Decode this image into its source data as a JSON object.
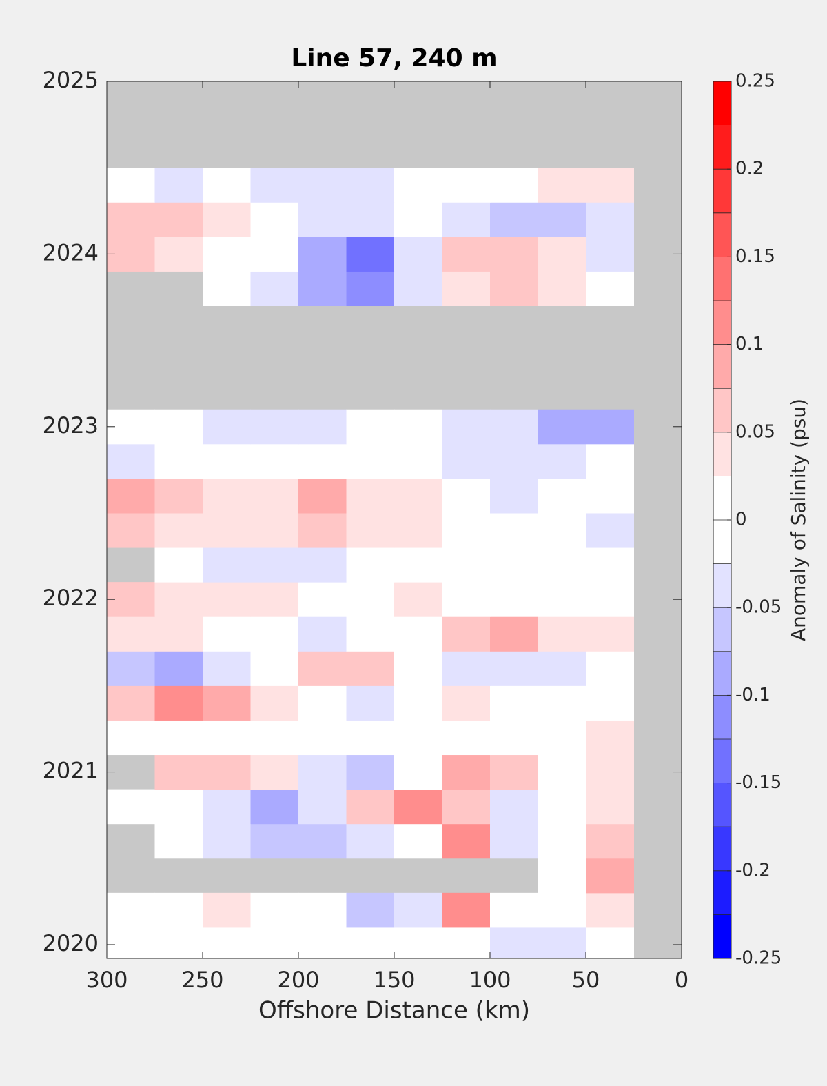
{
  "chart_data": {
    "type": "contour",
    "title": "Line 57, 240 m",
    "x_label": "Offshore Distance (km)",
    "colorbar_label": "Anomaly of Salinity (psu)",
    "xlim": [
      300,
      0
    ],
    "xticks": [
      300,
      250,
      200,
      150,
      100,
      50,
      0
    ],
    "ylim": [
      2019.92,
      2025
    ],
    "yticks": [
      2020,
      2021,
      2022,
      2023,
      2024,
      2025
    ],
    "clim": [
      -0.25,
      0.25
    ],
    "cticks": [
      -0.25,
      -0.2,
      -0.15,
      -0.1,
      -0.05,
      0,
      0.05,
      0.1,
      0.15,
      0.2,
      0.25
    ],
    "colors": [
      "#0000ff",
      "#1c1cff",
      "#3838ff",
      "#5555ff",
      "#7171ff",
      "#8d8dff",
      "#aaaaff",
      "#c6c6ff",
      "#e2e2ff",
      "#ffffff",
      "#ffffff",
      "#ffe2e2",
      "#ffc6c6",
      "#ffaaaa",
      "#ff8d8d",
      "#ff7171",
      "#ff5555",
      "#ff3838",
      "#ff1c1c",
      "#ff0000"
    ],
    "missing_color": "#c8c8c8",
    "x": [
      287.5,
      262.5,
      237.5,
      212.5,
      187.5,
      162.5,
      137.5,
      112.5,
      87.5,
      62.5,
      37.5,
      12.5
    ],
    "y": [
      2020.0,
      2020.2,
      2020.4,
      2020.6,
      2020.8,
      2021.0,
      2021.2,
      2021.4,
      2021.6,
      2021.8,
      2022.0,
      2022.2,
      2022.4,
      2022.6,
      2022.8,
      2023.0,
      2023.2,
      2023.4,
      2023.6,
      2023.8,
      2024.0,
      2024.2,
      2024.4,
      2024.6,
      2024.8
    ],
    "z": [
      [
        0,
        0,
        0,
        0,
        0,
        0,
        0,
        0,
        -0.03,
        -0.03,
        0,
        null
      ],
      [
        0,
        0,
        0.03,
        0,
        0,
        -0.06,
        -0.03,
        0.1,
        0,
        0,
        0.03,
        null
      ],
      [
        null,
        null,
        null,
        null,
        null,
        null,
        null,
        null,
        null,
        0,
        0.08,
        null
      ],
      [
        null,
        0,
        -0.05,
        -0.06,
        -0.06,
        -0.05,
        0,
        0.12,
        -0.03,
        0,
        0.07,
        null
      ],
      [
        0,
        0,
        -0.03,
        -0.08,
        -0.04,
        0.06,
        0.12,
        0.05,
        -0.05,
        0,
        0.04,
        null
      ],
      [
        null,
        0.05,
        0.07,
        0.03,
        -0.03,
        -0.06,
        0,
        0.08,
        0.05,
        0,
        0.03,
        null
      ],
      [
        0,
        0,
        0,
        0,
        0,
        0,
        0,
        0,
        0,
        0,
        0.03,
        null
      ],
      [
        0.07,
        0.1,
        0.09,
        0.04,
        0,
        -0.04,
        0,
        0.03,
        0,
        0,
        0,
        null
      ],
      [
        -0.06,
        -0.09,
        -0.05,
        0,
        0.05,
        0.05,
        0,
        -0.03,
        -0.03,
        -0.03,
        0,
        null
      ],
      [
        0.03,
        0.03,
        0,
        0,
        -0.04,
        0,
        0,
        0.05,
        0.08,
        0.04,
        0.03,
        null
      ],
      [
        0.07,
        0.03,
        0.04,
        0.03,
        0,
        0,
        0.03,
        0,
        0,
        0,
        0,
        null
      ],
      [
        null,
        0,
        -0.03,
        -0.03,
        -0.03,
        0,
        0,
        0,
        0,
        0,
        0,
        null
      ],
      [
        0.05,
        0.04,
        0.03,
        0.04,
        0.06,
        0.04,
        0.03,
        0,
        0,
        0,
        -0.03,
        null
      ],
      [
        0.09,
        0.05,
        0.03,
        0.04,
        0.08,
        0.04,
        0.03,
        0,
        -0.03,
        0,
        0,
        null
      ],
      [
        -0.04,
        0,
        0,
        0,
        0,
        0,
        0,
        -0.03,
        -0.03,
        -0.04,
        0,
        null
      ],
      [
        0,
        0,
        -0.03,
        -0.03,
        -0.04,
        0,
        0,
        -0.03,
        -0.05,
        -0.08,
        -0.08,
        null
      ],
      [
        null,
        null,
        null,
        null,
        null,
        null,
        null,
        null,
        null,
        null,
        null,
        null
      ],
      [
        null,
        null,
        null,
        null,
        null,
        null,
        null,
        null,
        null,
        null,
        null,
        null
      ],
      [
        null,
        null,
        null,
        null,
        null,
        null,
        null,
        null,
        null,
        null,
        null,
        null
      ],
      [
        null,
        null,
        0,
        -0.05,
        -0.1,
        -0.12,
        -0.05,
        0.04,
        0.06,
        0.03,
        0,
        null
      ],
      [
        0.06,
        0.03,
        0,
        0,
        -0.1,
        -0.15,
        -0.04,
        0.05,
        0.07,
        0.04,
        -0.03,
        null
      ],
      [
        0.07,
        0.06,
        0.03,
        0,
        -0.03,
        -0.03,
        0,
        -0.05,
        -0.06,
        -0.06,
        -0.05,
        null
      ],
      [
        0,
        -0.03,
        0,
        -0.03,
        -0.03,
        -0.04,
        0,
        0,
        0,
        0.03,
        0.03,
        null
      ],
      [
        null,
        null,
        null,
        null,
        null,
        null,
        null,
        null,
        null,
        null,
        null,
        null
      ],
      [
        null,
        null,
        null,
        null,
        null,
        null,
        null,
        null,
        null,
        null,
        null,
        null
      ]
    ]
  }
}
